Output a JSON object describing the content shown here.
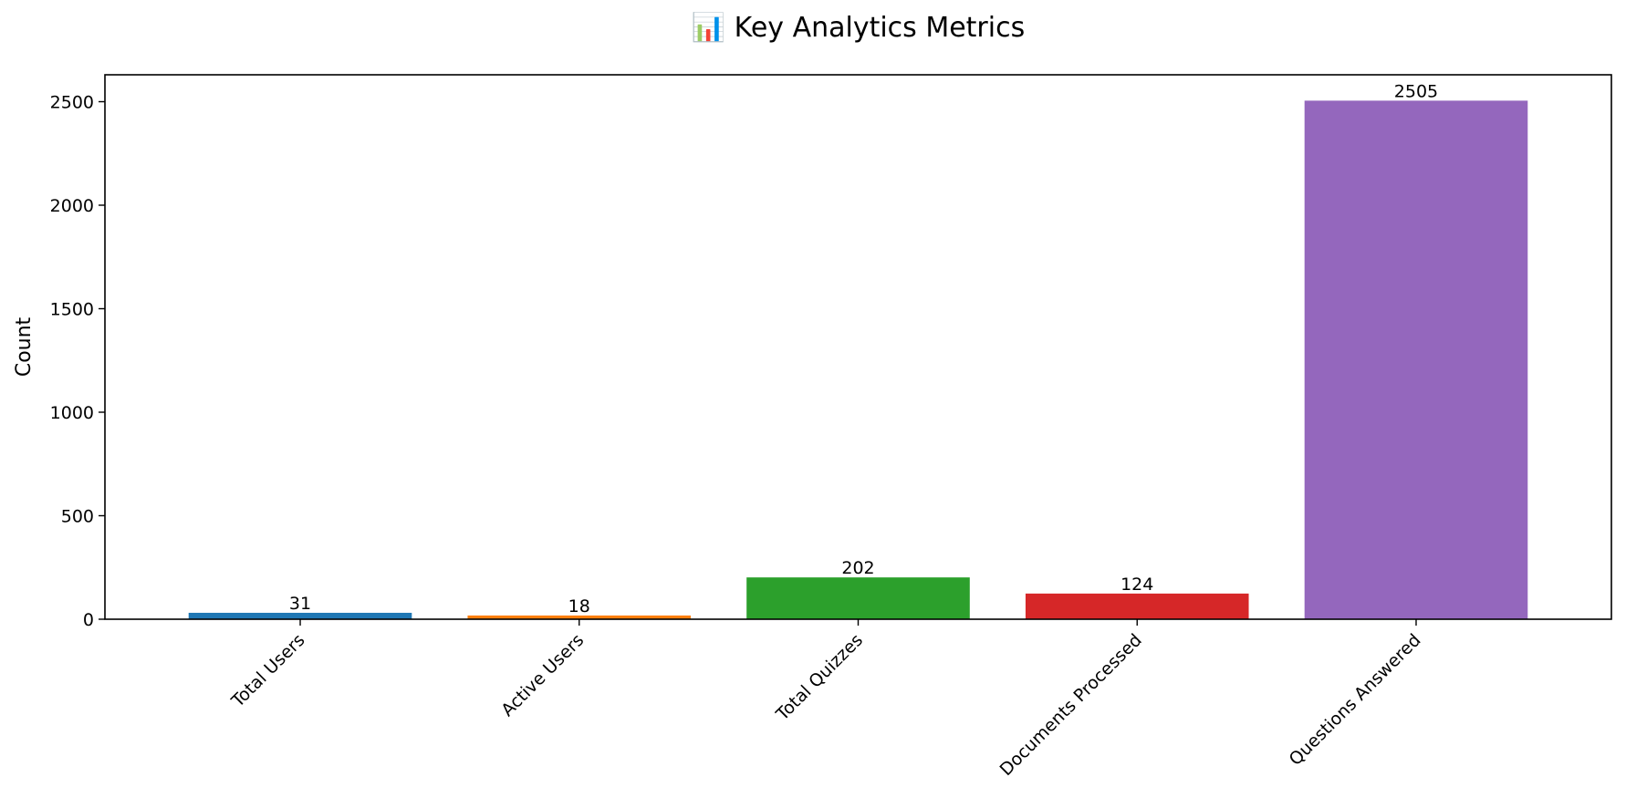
{
  "chart_data": {
    "type": "bar",
    "title": "📊 Key Analytics Metrics",
    "xlabel": "",
    "ylabel": "Count",
    "categories": [
      "Total Users",
      "Active Users",
      "Total Quizzes",
      "Documents Processed",
      "Questions Answered"
    ],
    "values": [
      31,
      18,
      202,
      124,
      2505
    ],
    "data_labels": [
      "31",
      "18",
      "202",
      "124",
      "2505"
    ],
    "colors": [
      "#1f77b4",
      "#ff7f0e",
      "#2ca02c",
      "#d62728",
      "#9467bd"
    ],
    "ylim": [
      0,
      2630
    ],
    "yticks": [
      0,
      500,
      1000,
      1500,
      2000,
      2500
    ],
    "ytick_labels": [
      "0",
      "500",
      "1000",
      "1500",
      "2000",
      "2500"
    ],
    "xtick_rotation": 45,
    "grid": false,
    "legend": "none"
  }
}
